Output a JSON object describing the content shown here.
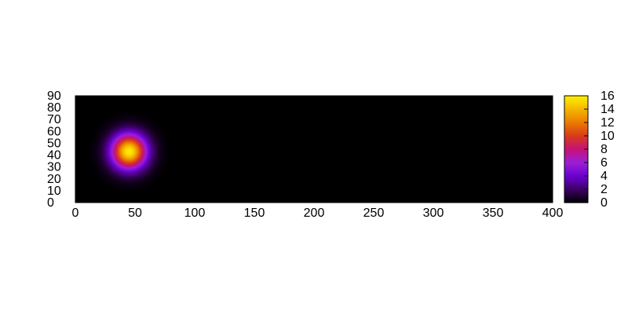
{
  "chart_data": {
    "type": "heatmap",
    "title": "",
    "xlabel": "",
    "ylabel": "",
    "xlim": [
      0,
      400
    ],
    "ylim": [
      0,
      90
    ],
    "xticks": [
      0,
      50,
      100,
      150,
      200,
      250,
      300,
      350,
      400
    ],
    "yticks": [
      0,
      10,
      20,
      30,
      40,
      50,
      60,
      70,
      80,
      90
    ],
    "colorbar": {
      "range": [
        0,
        16
      ],
      "ticks": [
        0,
        2,
        4,
        6,
        8,
        10,
        12,
        14,
        16
      ],
      "palette": [
        "#000000",
        "#3c0063",
        "#6a00d0",
        "#9b1fd6",
        "#c4127a",
        "#d73a1e",
        "#ea7a00",
        "#f4b400",
        "#ffee00"
      ]
    },
    "peak": {
      "x": 45,
      "y": 43,
      "value": 16,
      "sigma_x": 10.5,
      "sigma_y": 10.5
    },
    "background_value": 0,
    "grid": false
  }
}
